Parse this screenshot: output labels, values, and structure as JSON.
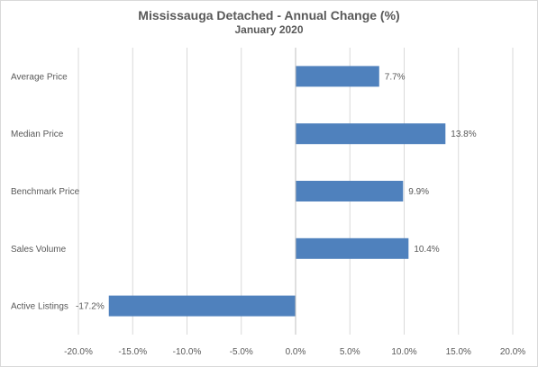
{
  "chart_data": {
    "type": "bar",
    "orientation": "horizontal",
    "title": "Mississauga Detached - Annual Change (%)",
    "subtitle": "January 2020",
    "categories": [
      "Average Price",
      "Median Price",
      "Benchmark Price",
      "Sales Volume",
      "Active Listings"
    ],
    "values": [
      7.7,
      13.8,
      9.9,
      10.4,
      -17.2
    ],
    "value_labels": [
      "7.7%",
      "13.8%",
      "9.9%",
      "10.4%",
      "-17.2%"
    ],
    "xlim": [
      -20,
      20
    ],
    "xticks": [
      -20,
      -15,
      -10,
      -5,
      0,
      5,
      10,
      15,
      20
    ],
    "xtick_labels": [
      "-20.0%",
      "-15.0%",
      "-10.0%",
      "-5.0%",
      "0.0%",
      "5.0%",
      "10.0%",
      "15.0%",
      "20.0%"
    ],
    "xlabel": "",
    "ylabel": "",
    "grid": "vertical",
    "legend": "none",
    "bar_color": "#4f81bd",
    "gridline_color": "#d9d9d9"
  }
}
